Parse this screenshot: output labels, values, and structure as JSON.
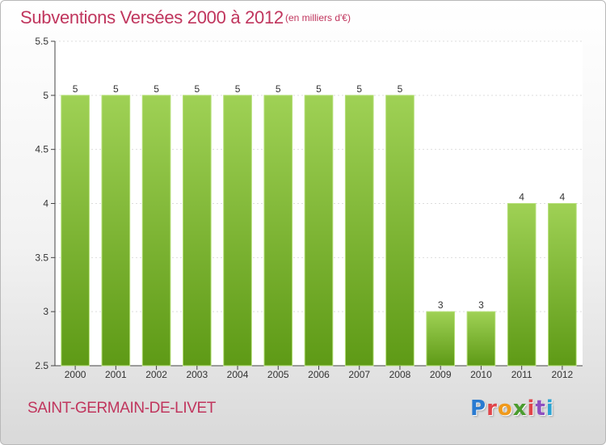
{
  "title": "Subventions Versées 2000 à 2012",
  "unit_note": "(en milliers d'€)",
  "commune": "SAINT-GERMAIN-DE-LIVET",
  "logo_text": "Proxiti",
  "colors": {
    "title": "#c0355d",
    "bar_top": "#9fd155",
    "bar_bottom": "#5e9a16",
    "axis": "#444444",
    "grid": "#dddddd"
  },
  "chart_data": {
    "type": "bar",
    "categories": [
      "2000",
      "2001",
      "2002",
      "2003",
      "2004",
      "2005",
      "2006",
      "2007",
      "2008",
      "2009",
      "2010",
      "2011",
      "2012"
    ],
    "values": [
      5,
      5,
      5,
      5,
      5,
      5,
      5,
      5,
      5,
      3,
      3,
      4,
      4
    ],
    "value_labels": [
      "5",
      "5",
      "5",
      "5",
      "5",
      "5",
      "5",
      "5",
      "5",
      "3",
      "3",
      "4",
      "4"
    ],
    "yticks": [
      "2.5",
      "3",
      "3.5",
      "4",
      "4.5",
      "5",
      "5.5"
    ],
    "ylim": [
      2.5,
      5.5
    ],
    "grid": true,
    "legend": "none"
  }
}
